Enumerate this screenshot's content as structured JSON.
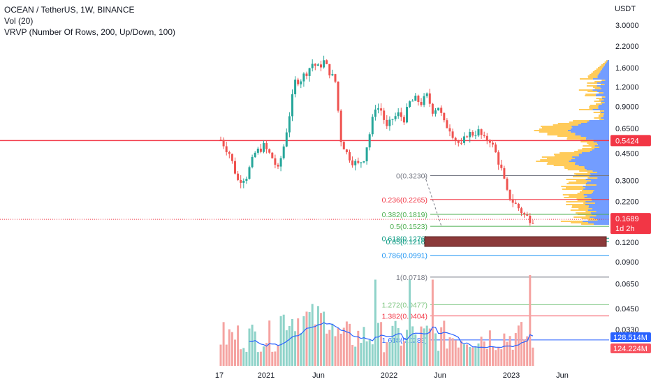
{
  "legend": {
    "title": "OCEAN / TetherUS, 1W, BINANCE",
    "vol": "Vol (20)",
    "vrvp": "VRVP (Number Of Rows, 200, Up/Down, 100)"
  },
  "chart_data": {
    "type": "candlestick",
    "symbol": "OCEAN / TetherUS",
    "interval": "1W",
    "exchange": "BINANCE",
    "price_axis": {
      "unit": "USDT",
      "scale": "log",
      "ticks": [
        "3.0000",
        "2.2000",
        "1.6000",
        "1.2000",
        "0.9000",
        "0.6500",
        "0.4500",
        "0.3000",
        "0.2200",
        "0.1200",
        "0.0900",
        "0.0650",
        "0.0450",
        "0.0330"
      ]
    },
    "time_axis": {
      "ticks": [
        "17",
        "2021",
        "Jun",
        "2022",
        "Jun",
        "2023",
        "Jun"
      ]
    },
    "horizontal_line": {
      "price": 0.5424,
      "label": "0.5424",
      "color": "#f23645"
    },
    "last_price": {
      "label": "0.1689",
      "countdown": "1d 2h",
      "color": "#f23645"
    },
    "volume_labels": [
      {
        "label": "128.514M",
        "color": "#2962ff"
      },
      {
        "label": "124.224M",
        "color": "#f7525f"
      }
    ],
    "fibonacci": [
      {
        "label": "0(0.3230)",
        "level": 0,
        "price": 0.323,
        "color": "#787b86"
      },
      {
        "label": "0.236(0.2265)",
        "level": 0.236,
        "price": 0.2265,
        "color": "#f23645"
      },
      {
        "label": "0.382(0.1819)",
        "level": 0.382,
        "price": 0.1819,
        "color": "#4caf50"
      },
      {
        "label": "0.5(0.1523)",
        "level": 0.5,
        "price": 0.1523,
        "color": "#4caf50"
      },
      {
        "label": "0.618(0.1276)",
        "level": 0.618,
        "price": 0.1276,
        "color": "#089981"
      },
      {
        "label": "0.65(0.1216)",
        "level": 0.65,
        "price": 0.1216,
        "color": "#089981"
      },
      {
        "label": "0.786(0.0991)",
        "level": 0.786,
        "price": 0.0991,
        "color": "#2196f3"
      },
      {
        "label": "1(0.0718)",
        "level": 1,
        "price": 0.0718,
        "color": "#787b86"
      },
      {
        "label": "1.272(0.0477)",
        "level": 1.272,
        "price": 0.0477,
        "color": "#81c784"
      },
      {
        "label": "1.382(0.0404)",
        "level": 1.382,
        "price": 0.0404,
        "color": "#f23645"
      },
      {
        "label": "1.618(0.0283)",
        "level": 1.618,
        "price": 0.0283,
        "color": "#2962ff"
      }
    ],
    "colors": {
      "up": "#26a69a",
      "down": "#ef5350",
      "vol_ma": "#2962ff",
      "profile_up": "#5b8cff",
      "profile_down": "#ffc23d",
      "zone": "#8b3a3a"
    }
  }
}
